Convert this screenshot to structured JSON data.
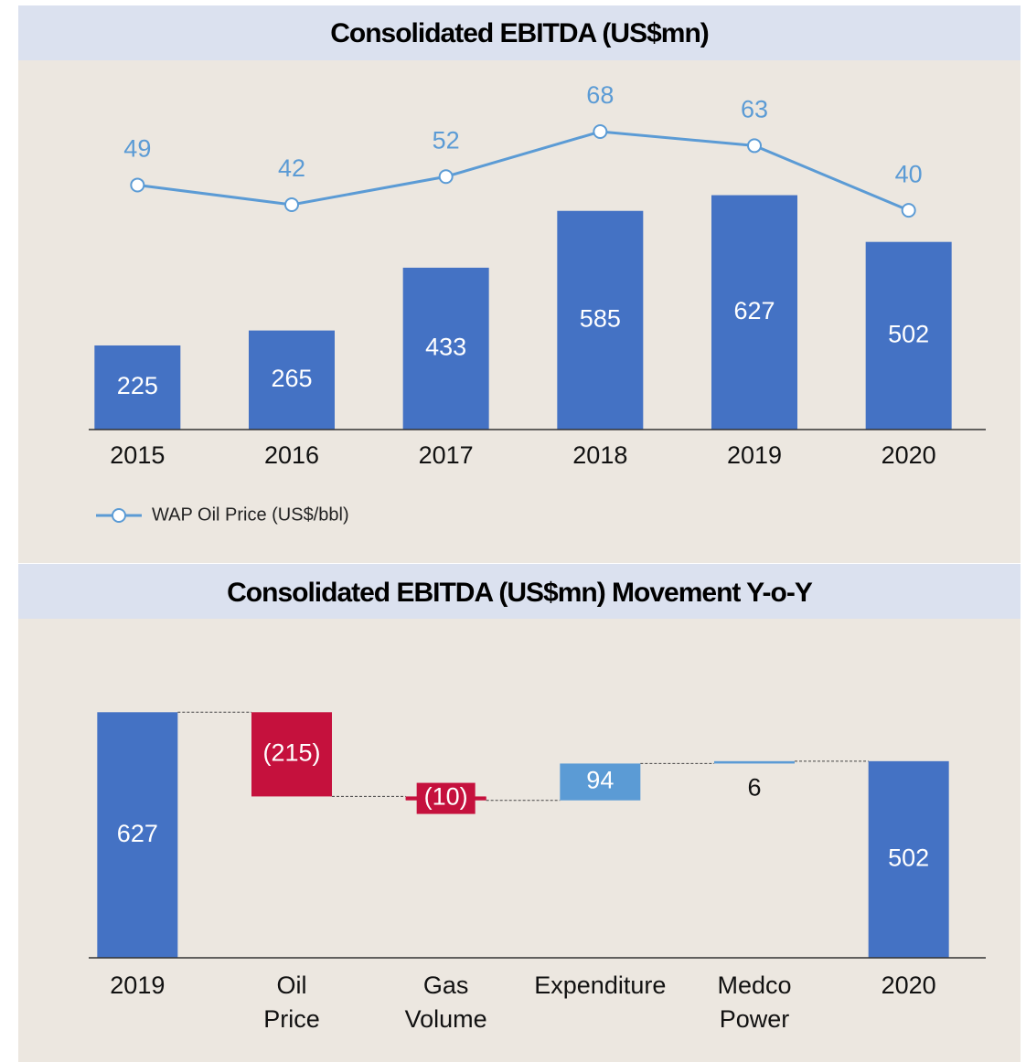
{
  "chart_data": [
    {
      "type": "bar_line",
      "title": "Consolidated EBITDA  (US$mn)",
      "categories": [
        "2015",
        "2016",
        "2017",
        "2018",
        "2019",
        "2020"
      ],
      "series": [
        {
          "color": "#4472c4",
          "values": [
            225,
            265,
            433,
            585,
            627,
            502
          ]
        },
        {
          "name": "WAP Oil Price (US$/bbl)",
          "color": "#5b9bd5",
          "axis": "y2",
          "values": [
            49,
            42,
            52,
            68,
            63,
            40
          ]
        }
      ],
      "ylim": [
        0,
        1000
      ],
      "y2lim": [
        -38,
        95
      ],
      "legend": "bottom-left"
    },
    {
      "type": "waterfall",
      "title": "Consolidated EBITDA (US$mn) Movement Y-o-Y",
      "categories": [
        "2019",
        "Oil Price",
        "Gas Volume",
        "Expenditure",
        "Medco Power",
        "2020"
      ],
      "values": [
        627,
        -215,
        -10,
        94,
        6,
        502
      ],
      "value_labels": [
        "627",
        "(215)",
        "(10)",
        "94",
        "6",
        "502"
      ],
      "colors": {
        "total": "#4472c4",
        "decrease": "#c5113d",
        "increase": "#5b9bd5"
      },
      "ylim": [
        0,
        840
      ]
    }
  ]
}
